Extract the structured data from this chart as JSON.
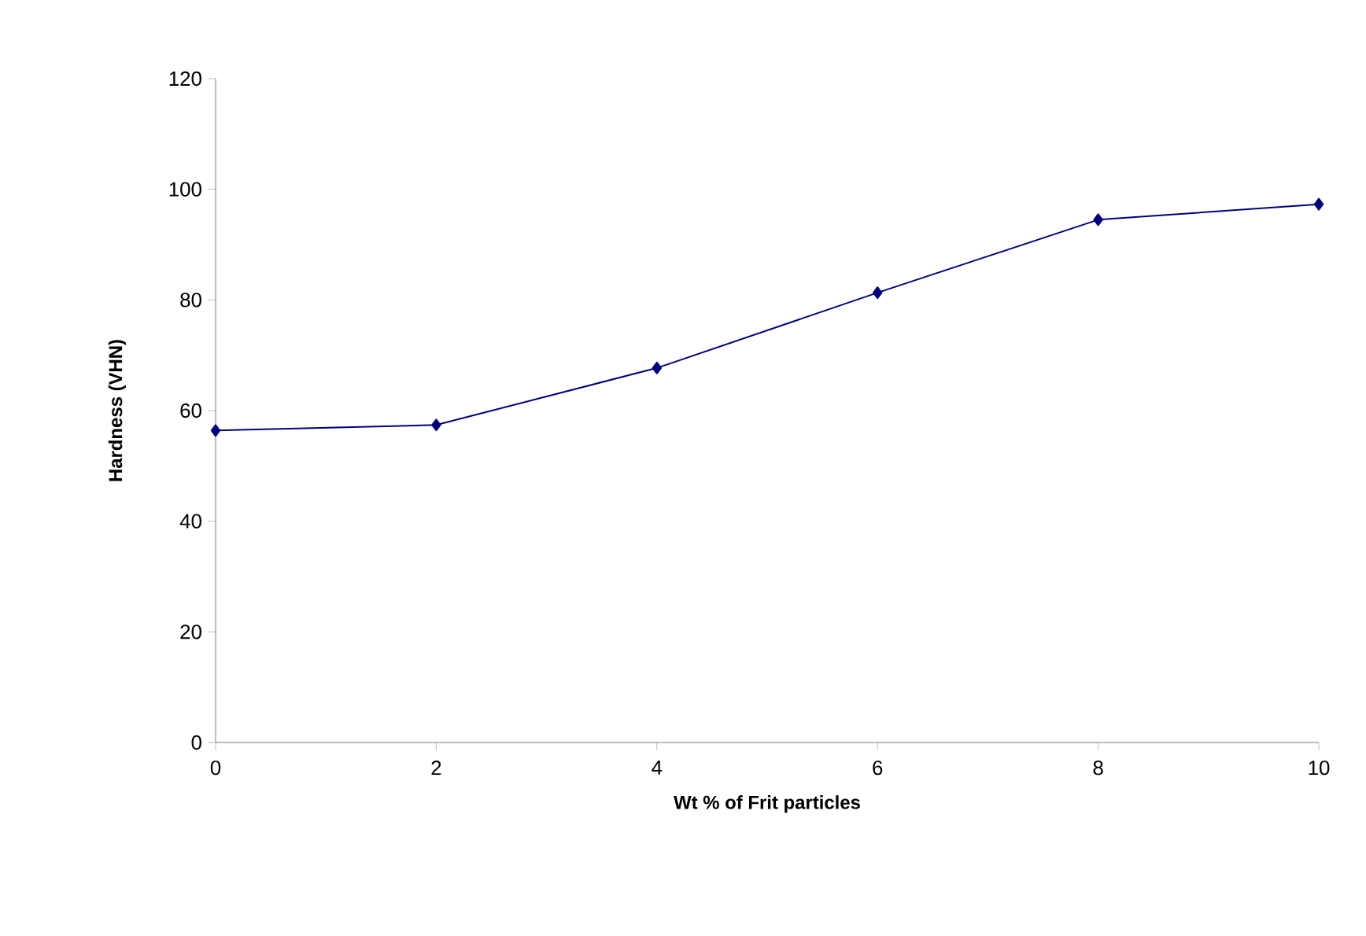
{
  "chart_data": {
    "type": "line",
    "xlabel": "Wt % of Frit particles",
    "ylabel": "Hardness (VHN)",
    "x": [
      0,
      2,
      4,
      6,
      8,
      10
    ],
    "series": [
      {
        "color": "#000080",
        "values": [
          56.4,
          57.4,
          67.7,
          81.3,
          94.5,
          97.3
        ]
      }
    ],
    "xlim": [
      0,
      10
    ],
    "ylim": [
      0,
      120
    ],
    "xticks": [
      0,
      2,
      4,
      6,
      8,
      10
    ],
    "yticks": [
      0,
      20,
      40,
      60,
      80,
      100,
      120
    ],
    "marker": "diamond",
    "line_style": "solid"
  }
}
